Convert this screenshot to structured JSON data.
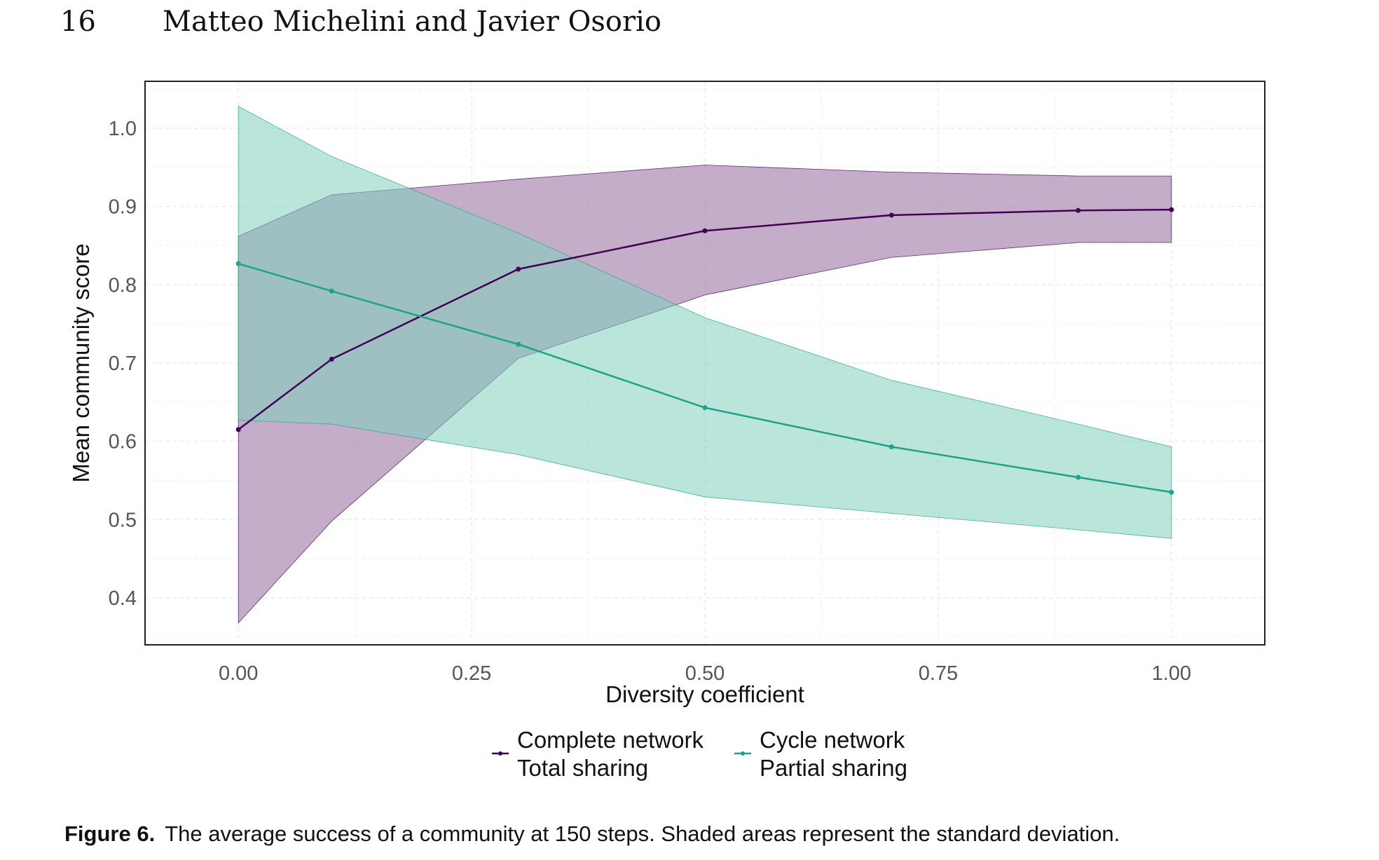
{
  "header": {
    "page_number": "16",
    "authors": "Matteo Michelini and Javier Osorio"
  },
  "figure": {
    "caption_label": "Figure 6.",
    "caption_text": "The average success of a community at 150 steps. Shaded areas represent the standard deviation."
  },
  "colors": {
    "complete": "#440154",
    "complete_fill": "#a07aa8",
    "cycle": "#21a08a",
    "cycle_fill": "#7fcfbe"
  },
  "chart_data": {
    "type": "line",
    "title": "",
    "xlabel": "Diversity coefficient",
    "ylabel": "Mean community score",
    "xlim": [
      -0.1,
      1.1
    ],
    "ylim": [
      0.34,
      1.06
    ],
    "x_ticks": [
      0.0,
      0.25,
      0.5,
      0.75,
      1.0
    ],
    "x_tick_labels": [
      "0.00",
      "0.25",
      "0.50",
      "0.75",
      "1.00"
    ],
    "y_ticks": [
      0.4,
      0.5,
      0.6,
      0.7,
      0.8,
      0.9,
      1.0
    ],
    "y_tick_labels": [
      "0.4",
      "0.5",
      "0.6",
      "0.7",
      "0.8",
      "0.9",
      "1.0"
    ],
    "grid": true,
    "legend_position": "bottom",
    "x": [
      0.0,
      0.1,
      0.3,
      0.5,
      0.7,
      0.9,
      1.0
    ],
    "series": [
      {
        "name": "Complete network Total sharing",
        "legend_line1": "Complete network",
        "legend_line2": "Total sharing",
        "values": [
          0.615,
          0.705,
          0.82,
          0.869,
          0.889,
          0.895,
          0.896
        ],
        "upper": [
          0.862,
          0.915,
          0.935,
          0.953,
          0.944,
          0.939,
          0.939
        ],
        "lower": [
          0.368,
          0.498,
          0.706,
          0.787,
          0.835,
          0.854,
          0.854
        ]
      },
      {
        "name": "Cycle network Partial sharing",
        "legend_line1": "Cycle network",
        "legend_line2": "Partial sharing",
        "values": [
          0.827,
          0.792,
          0.724,
          0.643,
          0.593,
          0.554,
          0.535
        ],
        "upper": [
          1.028,
          0.964,
          0.866,
          0.758,
          0.678,
          0.622,
          0.593
        ],
        "lower": [
          0.627,
          0.622,
          0.583,
          0.529,
          0.508,
          0.487,
          0.476
        ]
      }
    ]
  }
}
